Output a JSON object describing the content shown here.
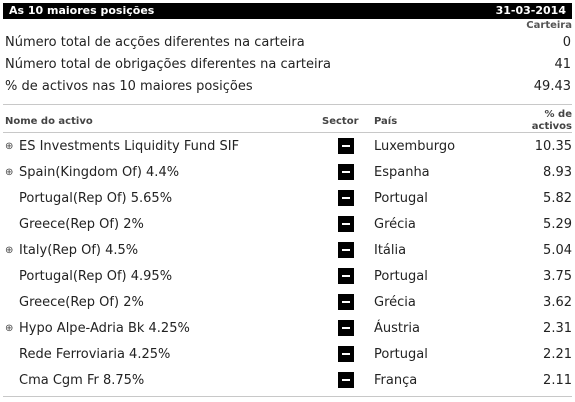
{
  "header": {
    "title": "As 10 maiores posições",
    "date": "31-03-2014"
  },
  "summary": {
    "column_label": "Carteira",
    "rows": [
      {
        "label": "Número total de acções diferentes na carteira",
        "value": "0"
      },
      {
        "label": "Número total de obrigações diferentes na carteira",
        "value": "41"
      },
      {
        "label": "% de activos nas 10 maiores posições",
        "value": "49.43"
      }
    ]
  },
  "table": {
    "columns": {
      "name": "Nome do activo",
      "sector": "Sector",
      "country": "País",
      "pct_line1": "% de",
      "pct_line2": "activos"
    },
    "rows": [
      {
        "name": "ES Investments Liquidity Fund SIF",
        "country": "Luxemburgo",
        "pct": "10.35",
        "expandable": true
      },
      {
        "name": "Spain(Kingdom Of) 4.4%",
        "country": "Espanha",
        "pct": "8.93",
        "expandable": true
      },
      {
        "name": "Portugal(Rep Of) 5.65%",
        "country": "Portugal",
        "pct": "5.82",
        "expandable": false
      },
      {
        "name": "Greece(Rep Of) 2%",
        "country": "Grécia",
        "pct": "5.29",
        "expandable": false
      },
      {
        "name": "Italy(Rep Of) 4.5%",
        "country": "Itália",
        "pct": "5.04",
        "expandable": true
      },
      {
        "name": "Portugal(Rep Of) 4.95%",
        "country": "Portugal",
        "pct": "3.75",
        "expandable": false
      },
      {
        "name": "Greece(Rep Of) 2%",
        "country": "Grécia",
        "pct": "3.62",
        "expandable": false
      },
      {
        "name": "Hypo Alpe-Adria Bk 4.25%",
        "country": "Áustria",
        "pct": "2.31",
        "expandable": true
      },
      {
        "name": "Rede Ferroviaria 4.25%",
        "country": "Portugal",
        "pct": "2.21",
        "expandable": false
      },
      {
        "name": "Cma Cgm Fr 8.75%",
        "country": "França",
        "pct": "2.11",
        "expandable": false
      }
    ]
  }
}
